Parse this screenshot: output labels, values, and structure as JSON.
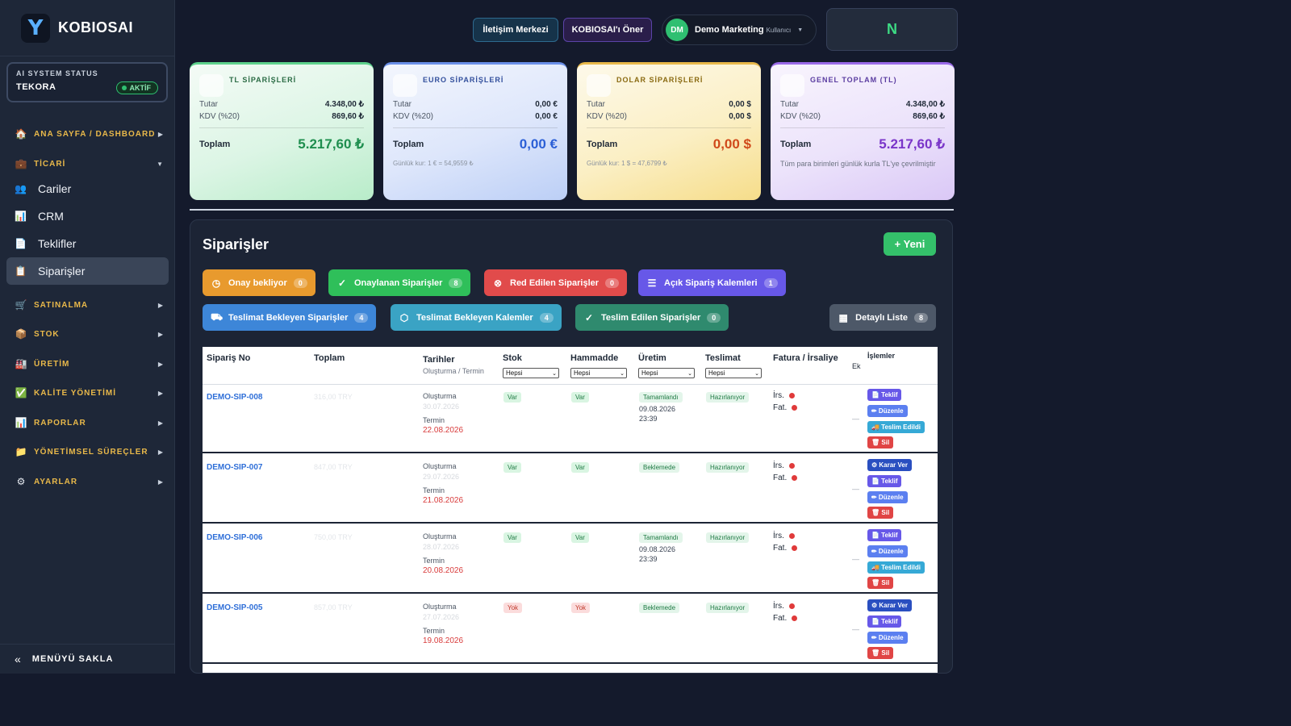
{
  "brand": {
    "logo_letter": "Y",
    "name": "KOBIOSAI"
  },
  "ai_status": {
    "title": "AI SYSTEM STATUS",
    "name": "TEKORA",
    "badge": "AKTİF"
  },
  "sidebar": {
    "sections": [
      {
        "icon": "🏠",
        "label": "ANA SAYFA / DASHBOARD",
        "arrow": "▶"
      },
      {
        "icon": "💼",
        "label": "TİCARİ",
        "arrow": "▼"
      },
      {
        "icon": "🛒",
        "label": "SATINALMA",
        "arrow": "▶"
      },
      {
        "icon": "📦",
        "label": "STOK",
        "arrow": "▶"
      },
      {
        "icon": "🏭",
        "label": "ÜRETİM",
        "arrow": "▶"
      },
      {
        "icon": "✅",
        "label": "KALİTE YÖNETİMİ",
        "arrow": "▶"
      },
      {
        "icon": "📊",
        "label": "RAPORLAR",
        "arrow": "▶"
      },
      {
        "icon": "📁",
        "label": "YÖNETİMSEL SÜREÇLER",
        "arrow": "▶"
      },
      {
        "icon": "⚙",
        "label": "AYARLAR",
        "arrow": "▶"
      }
    ],
    "items": [
      {
        "icon": "👥",
        "label": "Cariler"
      },
      {
        "icon": "📊",
        "label": "CRM"
      },
      {
        "icon": "📄",
        "label": "Teklifler"
      },
      {
        "icon": "📋",
        "label": "Siparişler"
      }
    ],
    "hide_menu": {
      "icon": "«",
      "label": "MENÜYÜ SAKLA"
    }
  },
  "topbar": {
    "contact_label": "İletişim Merkezi",
    "suggest_label": "KOBIOSAI'ı Öner",
    "user": {
      "initials": "DM",
      "name": "Demo Marketing",
      "role": "Kullanıcı"
    },
    "n_label": "N"
  },
  "cards": {
    "tl": {
      "title": "TL SİPARİŞLERİ",
      "amount_label": "Tutar",
      "amount": "4.348,00 ₺",
      "vat_label": "KDV (%20)",
      "vat": "869,60 ₺",
      "total_label": "Toplam",
      "total": "5.217,60 ₺"
    },
    "eu": {
      "title": "EURO SİPARİŞLERİ",
      "amount_label": "Tutar",
      "amount": "0,00 €",
      "vat_label": "KDV (%20)",
      "vat": "0,00 €",
      "total_label": "Toplam",
      "total": "0,00 €",
      "note": "Günlük kur: 1 € = 54,9559 ₺"
    },
    "us": {
      "title": "DOLAR SİPARİŞLERİ",
      "amount_label": "Tutar",
      "amount": "0,00 $",
      "vat_label": "KDV (%20)",
      "vat": "0,00 $",
      "total_label": "Toplam",
      "total": "0,00 $",
      "note": "Günlük kur: 1 $ = 47,6799 ₺"
    },
    "gt": {
      "title": "GENEL TOPLAM (TL)",
      "amount_label": "Tutar",
      "amount": "4.348,00 ₺",
      "vat_label": "KDV (%20)",
      "vat": "869,60 ₺",
      "total_label": "Toplam",
      "total": "5.217,60 ₺",
      "note": "Tüm para birimleri günlük kurla TL'ye çevrilmiştir"
    }
  },
  "orders": {
    "title": "Siparişler",
    "new_label": "+ Yeni",
    "filters": [
      {
        "icon": "◷",
        "label": "Onay bekliyor",
        "count": "0"
      },
      {
        "icon": "✓",
        "label": "Onaylanan Siparişler",
        "count": "8"
      },
      {
        "icon": "⊗",
        "label": "Red Edilen Siparişler",
        "count": "0"
      },
      {
        "icon": "☰",
        "label": "Açık Sipariş Kalemleri",
        "count": "1"
      },
      {
        "icon": "⛟",
        "label": "Teslimat Bekleyen Siparişler",
        "count": "4"
      },
      {
        "icon": "⬡",
        "label": "Teslimat Bekleyen Kalemler",
        "count": "4"
      },
      {
        "icon": "✓",
        "label": "Teslim Edilen Siparişler",
        "count": "0"
      },
      {
        "icon": "▦",
        "label": "Detaylı Liste",
        "count": "8"
      }
    ],
    "columns": {
      "no": "Sipariş No",
      "total": "Toplam",
      "dates": "Tarihler",
      "dates_sub": "Oluşturma / Termin",
      "stock": "Stok",
      "raw": "Hammadde",
      "production": "Üretim",
      "delivery": "Teslimat",
      "invoice": "Fatura / İrsaliye",
      "ek": "Ek",
      "actions": "İşlemler"
    },
    "filter_all": "Hepsi",
    "rows": [
      {
        "no": "DEMO-SIP-008",
        "total": "316,00 TRY",
        "created_label": "Oluşturma",
        "created": "30.07.2026",
        "term_label": "Termin",
        "term": "22.08.2026",
        "stock": "Var",
        "raw": "Var",
        "production": "Tamamlandı",
        "prod_date": "09.08.2026",
        "prod_time": "23:39",
        "delivery": "Hazırlanıyor",
        "irs": "İrs.",
        "fat": "Fat.",
        "ek": "—",
        "actions": [
          "📄 Teklif",
          "✏ Düzenle",
          "🚚 Teslim Edildi",
          "🗑 Sil"
        ]
      },
      {
        "no": "DEMO-SIP-007",
        "total": "847,00 TRY",
        "created_label": "Oluşturma",
        "created": "29.07.2026",
        "term_label": "Termin",
        "term": "21.08.2026",
        "stock": "Var",
        "raw": "Var",
        "production": "Beklemede",
        "prod_date": "",
        "prod_time": "",
        "delivery": "Hazırlanıyor",
        "irs": "İrs.",
        "fat": "Fat.",
        "ek": "—",
        "actions": [
          "⚙ Karar Ver",
          "📄 Teklif",
          "✏ Düzenle",
          "🗑 Sil"
        ]
      },
      {
        "no": "DEMO-SIP-006",
        "total": "750,00 TRY",
        "created_label": "Oluşturma",
        "created": "28.07.2026",
        "term_label": "Termin",
        "term": "20.08.2026",
        "stock": "Var",
        "raw": "Var",
        "production": "Tamamlandı",
        "prod_date": "09.08.2026",
        "prod_time": "23:39",
        "delivery": "Hazırlanıyor",
        "irs": "İrs.",
        "fat": "Fat.",
        "ek": "—",
        "actions": [
          "📄 Teklif",
          "✏ Düzenle",
          "🚚 Teslim Edildi",
          "🗑 Sil"
        ]
      },
      {
        "no": "DEMO-SIP-005",
        "total": "857,00 TRY",
        "created_label": "Oluşturma",
        "created": "27.07.2026",
        "term_label": "Termin",
        "term": "19.08.2026",
        "stock": "Yok",
        "raw": "Yok",
        "production": "Beklemede",
        "prod_date": "",
        "prod_time": "",
        "delivery": "Hazırlanıyor",
        "irs": "İrs.",
        "fat": "Fat.",
        "ek": "—",
        "actions": [
          "⚙ Karar Ver",
          "📄 Teklif",
          "✏ Düzenle",
          "🗑 Sil"
        ]
      }
    ]
  }
}
